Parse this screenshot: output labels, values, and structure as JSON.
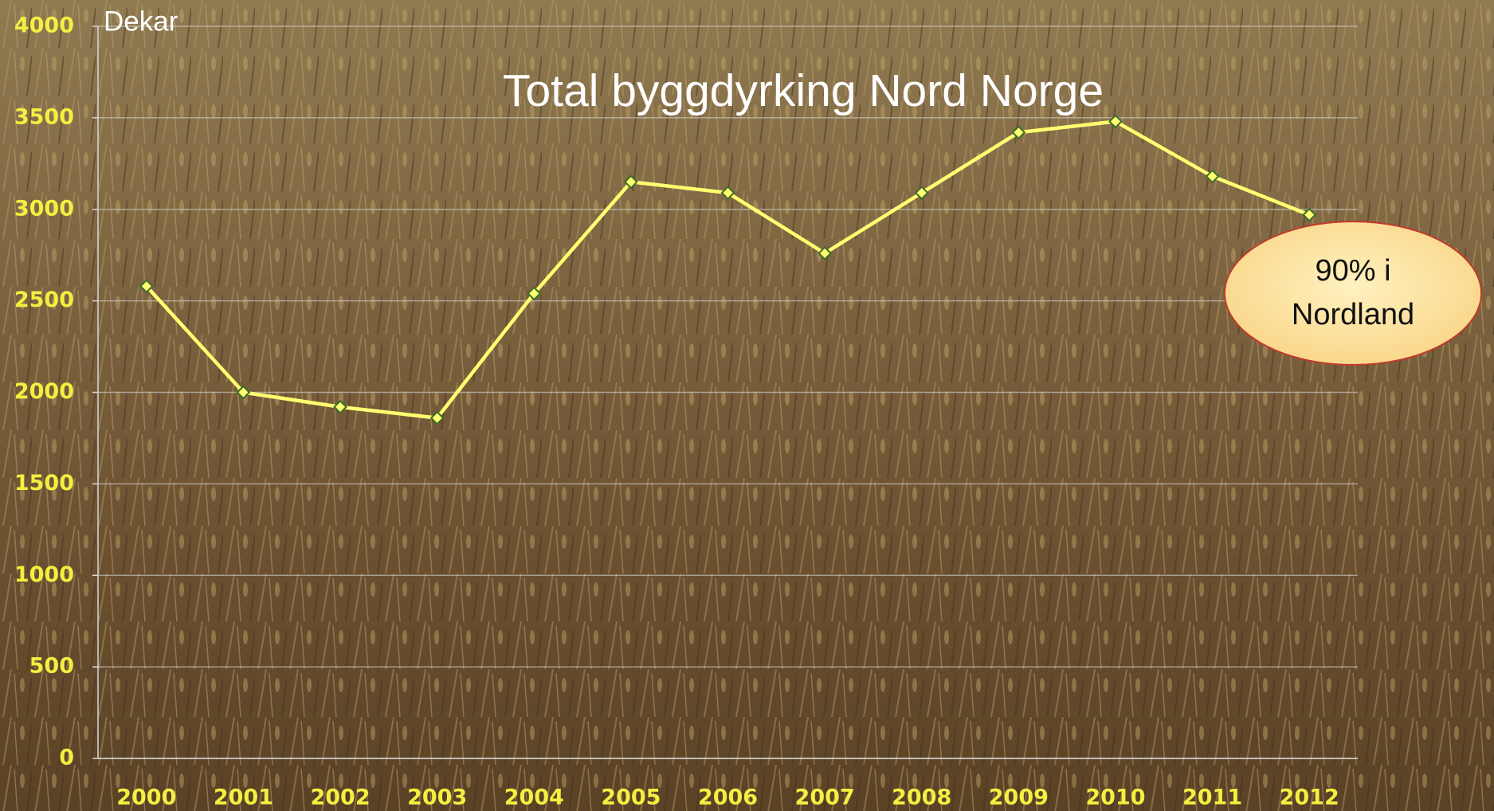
{
  "chart_data": {
    "type": "line",
    "title": "Total byggdyrking Nord Norge",
    "y_label": "Dekar",
    "categories": [
      "2000",
      "2001",
      "2002",
      "2003",
      "2004",
      "2005",
      "2006",
      "2007",
      "2008",
      "2009",
      "2010",
      "2011",
      "2012"
    ],
    "series": [
      {
        "color": "#ffff70",
        "values": [
          2580,
          2000,
          1920,
          1860,
          2540,
          3150,
          3090,
          2760,
          3090,
          3420,
          3480,
          3180,
          2970
        ]
      }
    ],
    "ylim": [
      0,
      4000
    ],
    "yticks": [
      0,
      500,
      1000,
      1500,
      2000,
      2500,
      3000,
      3500,
      4000
    ],
    "grid": true,
    "annotation": [
      "90% i",
      "Nordland"
    ]
  }
}
